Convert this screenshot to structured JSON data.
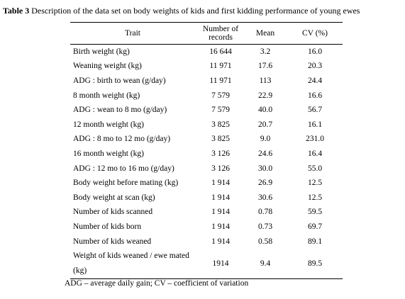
{
  "caption": {
    "label": "Table 3",
    "text": " Description of the data set on body weights of kids and first kidding performance of young ewes"
  },
  "table": {
    "headers": {
      "trait": "Trait",
      "records_line1": "Number of",
      "records_line2": "records",
      "mean": "Mean",
      "cv": "CV (%)"
    },
    "rows": [
      {
        "trait": "Birth weight (kg)",
        "records": "16 644",
        "mean": "3.2",
        "cv": "16.0"
      },
      {
        "trait": "Weaning weight (kg)",
        "records": "11 971",
        "mean": "17.6",
        "cv": "20.3"
      },
      {
        "trait": "ADG : birth to wean (g/day)",
        "records": "11 971",
        "mean": "113",
        "cv": "24.4"
      },
      {
        "trait": "8 month weight (kg)",
        "records": "7 579",
        "mean": "22.9",
        "cv": "16.6"
      },
      {
        "trait": "ADG : wean to 8 mo (g/day)",
        "records": "7 579",
        "mean": "40.0",
        "cv": "56.7"
      },
      {
        "trait": "12 month weight (kg)",
        "records": "3 825",
        "mean": "20.7",
        "cv": "16.1"
      },
      {
        "trait": "ADG : 8 mo to 12 mo (g/day)",
        "records": "3 825",
        "mean": "9.0",
        "cv": "231.0"
      },
      {
        "trait": "16 month weight (kg)",
        "records": "3 126",
        "mean": "24.6",
        "cv": "16.4"
      },
      {
        "trait": "ADG : 12 mo to 16 mo (g/day)",
        "records": "3 126",
        "mean": "30.0",
        "cv": "55.0"
      },
      {
        "trait": "Body weight before mating (kg)",
        "records": "1 914",
        "mean": "26.9",
        "cv": "12.5"
      },
      {
        "trait": "Body weight at scan (kg)",
        "records": "1 914",
        "mean": "30.6",
        "cv": "12.5"
      },
      {
        "trait": "Number of kids scanned",
        "records": "1 914",
        "mean": "0.78",
        "cv": "59.5"
      },
      {
        "trait": "Number of kids born",
        "records": "1 914",
        "mean": "0.73",
        "cv": "69.7"
      },
      {
        "trait": "Number of kids weaned",
        "records": "1 914",
        "mean": "0.58",
        "cv": "89.1"
      },
      {
        "trait": "Weight of kids weaned / ewe mated (kg)",
        "records": "1914",
        "mean": "9.4",
        "cv": "89.5"
      }
    ]
  },
  "footnote": "ADG – average daily gain; CV – coefficient of variation"
}
